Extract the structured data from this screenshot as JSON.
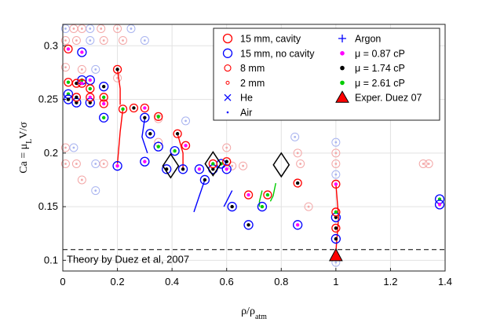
{
  "chart_data": {
    "type": "scatter",
    "xlabel_parts": {
      "base": "ρ/ρ",
      "sub": "atm"
    },
    "ylabel_parts": {
      "pre": "Ca = μ",
      "sub": "L",
      "post": "V/σ"
    },
    "xlim": [
      0,
      1.4
    ],
    "ylim": [
      0.09,
      0.32
    ],
    "grid": true,
    "xticks": [
      0,
      0.2,
      0.4,
      0.6,
      0.8,
      1,
      1.2,
      1.4
    ],
    "xtick_labels": [
      "0",
      "0.2",
      "0.4",
      "0.6",
      "0.8",
      "1",
      "1.2",
      "1.4"
    ],
    "yticks": [
      0.1,
      0.15,
      0.2,
      0.25,
      0.3
    ],
    "ytick_labels": [
      "0.1",
      "0.15",
      "0.2",
      "0.25",
      "0.3"
    ],
    "legend_position": "top-right",
    "legend": [
      {
        "label": "15 mm, cavity",
        "marker": "circle-large",
        "color": "#ff0000"
      },
      {
        "label": "15 mm, no cavity",
        "marker": "circle-large",
        "color": "#0000ff"
      },
      {
        "label": "8 mm",
        "marker": "circle-medium",
        "color": "#ff0000"
      },
      {
        "label": "2 mm",
        "marker": "circle-small",
        "color": "#ff0000"
      },
      {
        "label": "He",
        "marker": "x",
        "color": "#0000ff"
      },
      {
        "label": "Air",
        "marker": "dot",
        "color": "#0000ff"
      },
      {
        "label": "Argon",
        "marker": "plus",
        "color": "#0000ff"
      },
      {
        "label": "μ = 0.87 cP",
        "marker": "dot-filled",
        "color": "#ff00ff"
      },
      {
        "label": "μ = 1.74 cP",
        "marker": "dot-filled",
        "color": "#000000"
      },
      {
        "label": "μ = 2.61 cP",
        "marker": "dot-filled",
        "color": "#00cc00"
      },
      {
        "label": "Exper. Duez 07",
        "marker": "triangle",
        "color": "#ff0000"
      }
    ],
    "theory_line": {
      "label": "Theory by Duez et al, 2007",
      "y": 0.11
    },
    "duez_experiment": {
      "x": 1.0,
      "y": 0.104
    },
    "diamonds": [
      {
        "x": 0.395,
        "y": 0.188
      },
      {
        "x": 0.55,
        "y": 0.19
      },
      {
        "x": 0.8,
        "y": 0.189
      }
    ],
    "red_series": [
      {
        "x": 0.02,
        "y": 0.297
      },
      {
        "x": 0.02,
        "y": 0.266
      },
      {
        "x": 0.05,
        "y": 0.265
      },
      {
        "x": 0.07,
        "y": 0.265
      },
      {
        "x": 0.1,
        "y": 0.26
      },
      {
        "x": 0.05,
        "y": 0.252
      },
      {
        "x": 0.1,
        "y": 0.252
      },
      {
        "x": 0.15,
        "y": 0.252
      },
      {
        "x": 0.2,
        "y": 0.278
      },
      {
        "x": 0.15,
        "y": 0.246
      },
      {
        "x": 0.22,
        "y": 0.241
      },
      {
        "x": 0.26,
        "y": 0.242
      },
      {
        "x": 0.3,
        "y": 0.242
      },
      {
        "x": 0.35,
        "y": 0.234
      },
      {
        "x": 0.42,
        "y": 0.218
      },
      {
        "x": 0.45,
        "y": 0.207
      },
      {
        "x": 0.55,
        "y": 0.19
      },
      {
        "x": 0.6,
        "y": 0.192
      },
      {
        "x": 0.68,
        "y": 0.161
      },
      {
        "x": 0.75,
        "y": 0.161
      },
      {
        "x": 0.86,
        "y": 0.172
      },
      {
        "x": 1.0,
        "y": 0.171
      },
      {
        "x": 1.0,
        "y": 0.145
      },
      {
        "x": 1.0,
        "y": 0.13
      }
    ],
    "blue_series": [
      {
        "x": 0.02,
        "y": 0.255
      },
      {
        "x": 0.07,
        "y": 0.294
      },
      {
        "x": 0.02,
        "y": 0.25
      },
      {
        "x": 0.05,
        "y": 0.247
      },
      {
        "x": 0.07,
        "y": 0.268
      },
      {
        "x": 0.1,
        "y": 0.268
      },
      {
        "x": 0.1,
        "y": 0.247
      },
      {
        "x": 0.15,
        "y": 0.262
      },
      {
        "x": 0.15,
        "y": 0.233
      },
      {
        "x": 0.2,
        "y": 0.188
      },
      {
        "x": 0.3,
        "y": 0.233
      },
      {
        "x": 0.32,
        "y": 0.218
      },
      {
        "x": 0.35,
        "y": 0.206
      },
      {
        "x": 0.3,
        "y": 0.192
      },
      {
        "x": 0.38,
        "y": 0.185
      },
      {
        "x": 0.44,
        "y": 0.185
      },
      {
        "x": 0.41,
        "y": 0.202
      },
      {
        "x": 0.5,
        "y": 0.185
      },
      {
        "x": 0.52,
        "y": 0.175
      },
      {
        "x": 0.55,
        "y": 0.185
      },
      {
        "x": 0.58,
        "y": 0.19
      },
      {
        "x": 0.6,
        "y": 0.185
      },
      {
        "x": 0.62,
        "y": 0.15
      },
      {
        "x": 0.68,
        "y": 0.133
      },
      {
        "x": 0.73,
        "y": 0.15
      },
      {
        "x": 0.86,
        "y": 0.133
      },
      {
        "x": 1.0,
        "y": 0.14
      },
      {
        "x": 1.0,
        "y": 0.12
      },
      {
        "x": 1.38,
        "y": 0.157
      },
      {
        "x": 1.38,
        "y": 0.152
      }
    ],
    "faint_series": [
      {
        "x": 0.01,
        "y": 0.316
      },
      {
        "x": 0.04,
        "y": 0.316
      },
      {
        "x": 0.07,
        "y": 0.316
      },
      {
        "x": 0.1,
        "y": 0.316
      },
      {
        "x": 0.14,
        "y": 0.316
      },
      {
        "x": 0.2,
        "y": 0.316
      },
      {
        "x": 0.25,
        "y": 0.316
      },
      {
        "x": 0.01,
        "y": 0.305
      },
      {
        "x": 0.05,
        "y": 0.305
      },
      {
        "x": 0.1,
        "y": 0.305
      },
      {
        "x": 0.15,
        "y": 0.305
      },
      {
        "x": 0.22,
        "y": 0.305
      },
      {
        "x": 0.3,
        "y": 0.305
      },
      {
        "x": 0.01,
        "y": 0.28
      },
      {
        "x": 0.07,
        "y": 0.278
      },
      {
        "x": 0.12,
        "y": 0.278
      },
      {
        "x": 0.2,
        "y": 0.27
      },
      {
        "x": 0.01,
        "y": 0.205
      },
      {
        "x": 0.04,
        "y": 0.205
      },
      {
        "x": 0.01,
        "y": 0.19
      },
      {
        "x": 0.05,
        "y": 0.19
      },
      {
        "x": 0.12,
        "y": 0.19
      },
      {
        "x": 0.15,
        "y": 0.19
      },
      {
        "x": 0.07,
        "y": 0.175
      },
      {
        "x": 0.12,
        "y": 0.165
      },
      {
        "x": 0.35,
        "y": 0.21
      },
      {
        "x": 0.35,
        "y": 0.232
      },
      {
        "x": 0.45,
        "y": 0.23
      },
      {
        "x": 0.62,
        "y": 0.188
      },
      {
        "x": 0.66,
        "y": 0.188
      },
      {
        "x": 0.85,
        "y": 0.215
      },
      {
        "x": 0.86,
        "y": 0.2
      },
      {
        "x": 0.87,
        "y": 0.19
      },
      {
        "x": 1.0,
        "y": 0.21
      },
      {
        "x": 1.0,
        "y": 0.2
      },
      {
        "x": 1.0,
        "y": 0.19
      },
      {
        "x": 1.0,
        "y": 0.18
      },
      {
        "x": 1.32,
        "y": 0.19
      },
      {
        "x": 1.34,
        "y": 0.19
      },
      {
        "x": 1.0,
        "y": 0.098
      },
      {
        "x": 0.9,
        "y": 0.15
      },
      {
        "x": 0.6,
        "y": 0.205
      }
    ],
    "tracks": [
      {
        "color": "#ff0000",
        "points": [
          [
            0.2,
            0.278
          ],
          [
            0.21,
            0.26
          ],
          [
            0.21,
            0.245
          ]
        ]
      },
      {
        "color": "#ff0000",
        "points": [
          [
            0.22,
            0.241
          ],
          [
            0.21,
            0.22
          ],
          [
            0.2,
            0.19
          ]
        ]
      },
      {
        "color": "#ff0000",
        "points": [
          [
            0.42,
            0.218
          ],
          [
            0.44,
            0.2
          ],
          [
            0.44,
            0.185
          ]
        ]
      },
      {
        "color": "#ff0000",
        "points": [
          [
            1.0,
            0.171
          ],
          [
            1.01,
            0.14
          ],
          [
            1.0,
            0.108
          ]
        ]
      },
      {
        "color": "#0000ff",
        "points": [
          [
            0.52,
            0.175
          ],
          [
            0.5,
            0.16
          ],
          [
            0.48,
            0.145
          ]
        ]
      },
      {
        "color": "#0000ff",
        "points": [
          [
            0.62,
            0.165
          ],
          [
            0.6,
            0.155
          ],
          [
            0.59,
            0.15
          ]
        ]
      },
      {
        "color": "#0000ff",
        "points": [
          [
            0.3,
            0.232
          ],
          [
            0.29,
            0.215
          ],
          [
            0.31,
            0.2
          ]
        ]
      },
      {
        "color": "#00cc00",
        "points": [
          [
            0.73,
            0.165
          ],
          [
            0.72,
            0.155
          ],
          [
            0.72,
            0.15
          ]
        ]
      },
      {
        "color": "#00cc00",
        "points": [
          [
            0.78,
            0.172
          ],
          [
            0.77,
            0.16
          ],
          [
            0.76,
            0.155
          ]
        ]
      }
    ]
  }
}
